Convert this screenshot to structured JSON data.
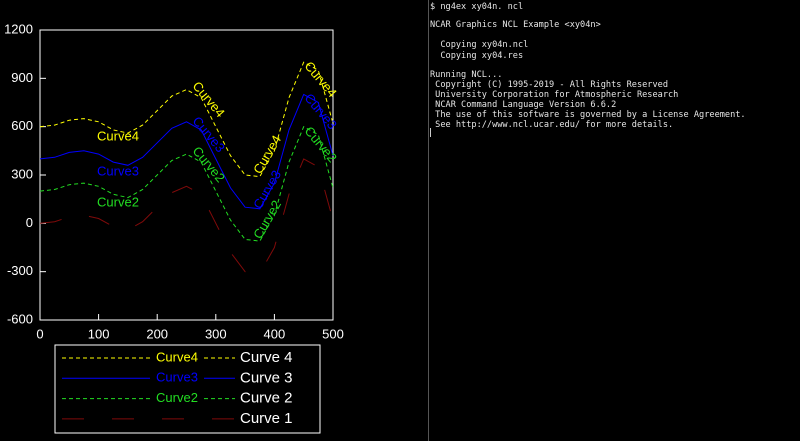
{
  "chart_data": {
    "type": "line",
    "x": [
      0,
      25,
      50,
      75,
      100,
      125,
      150,
      175,
      200,
      225,
      250,
      275,
      300,
      325,
      350,
      375,
      400,
      425,
      450,
      475,
      500
    ],
    "series": [
      {
        "name": "Curve 4",
        "label": "Curve4",
        "color": "#ffff00",
        "dash": "dashed",
        "values": [
          600,
          610,
          640,
          650,
          630,
          580,
          560,
          610,
          700,
          790,
          830,
          780,
          600,
          420,
          300,
          290,
          450,
          780,
          1000,
          950,
          620
        ]
      },
      {
        "name": "Curve 3",
        "label": "Curve3",
        "color": "#0000ff",
        "dash": "solid",
        "values": [
          400,
          410,
          440,
          450,
          430,
          380,
          360,
          410,
          500,
          590,
          630,
          580,
          400,
          220,
          100,
          90,
          250,
          580,
          800,
          750,
          420
        ]
      },
      {
        "name": "Curve 2",
        "label": "Curve2",
        "color": "#22dd22",
        "dash": "dashed",
        "values": [
          200,
          210,
          240,
          250,
          230,
          180,
          160,
          210,
          300,
          390,
          430,
          380,
          200,
          20,
          -100,
          -110,
          50,
          380,
          600,
          550,
          220
        ]
      },
      {
        "name": "Curve 1",
        "color": "#800a0a",
        "dash": "long-dashed",
        "values": [
          0,
          10,
          40,
          50,
          30,
          -20,
          -40,
          10,
          100,
          190,
          230,
          180,
          0,
          -180,
          -300,
          -310,
          -150,
          180,
          400,
          350,
          20
        ]
      }
    ],
    "xlim": [
      0,
      500
    ],
    "xticks": [
      0,
      100,
      200,
      300,
      400,
      500
    ],
    "ylim": [
      -600,
      1200
    ],
    "yticks": [
      -600,
      -300,
      0,
      300,
      600,
      900,
      1200
    ]
  },
  "terminal": {
    "lines": [
      "$ ng4ex xy04n. ncl",
      "NCAR Graphics NCL Example <xy04n>",
      "  Copying xy04n.ncl",
      "  Copying xy04.res",
      "Running NCL...",
      " Copyright (C) 1995-2019 - All Rights Reserved",
      " University Corporation for Atmospheric Research",
      " NCAR Command Language Version 6.6.2",
      " The use of this software is governed by a License Agreement.",
      " See http://www.ncl.ucar.edu/ for more details."
    ]
  }
}
